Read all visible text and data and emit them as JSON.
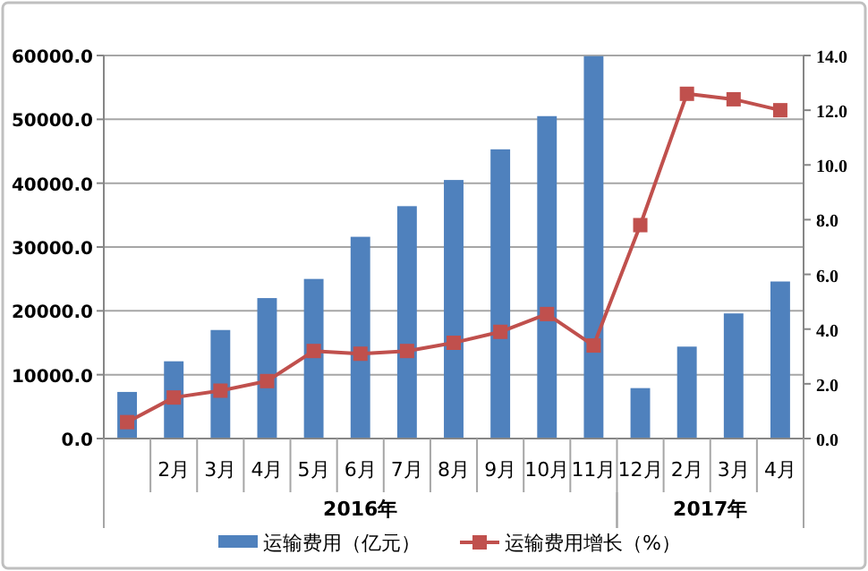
{
  "chart_data": {
    "type": "bar",
    "categories": [
      null,
      "2月",
      "3月",
      "4月",
      "5月",
      "6月",
      "7月",
      "8月",
      "9月",
      "10月",
      "11月",
      "12月",
      "2月",
      "3月",
      "4月"
    ],
    "series": [
      {
        "name": "运输费用（亿元）",
        "color": "#4f81bd",
        "values": [
          7300,
          12100,
          17000,
          22000,
          25000,
          31600,
          36400,
          40500,
          45300,
          50500,
          59900,
          7900,
          14400,
          19600,
          24600
        ]
      },
      {
        "name": "运输费用增长（%）",
        "type": "line",
        "axis": "y2",
        "color": "#c0504d",
        "marker": "square",
        "values": [
          0.6,
          1.5,
          1.75,
          2.1,
          3.2,
          3.1,
          3.2,
          3.5,
          3.9,
          4.55,
          3.4,
          7.8,
          12.6,
          12.4,
          12.0
        ]
      }
    ],
    "ylim": [
      0,
      60000
    ],
    "yticks": [
      {
        "value": 0,
        "label": "0.0"
      },
      {
        "value": 10000,
        "label": "10000.0"
      },
      {
        "value": 20000,
        "label": "20000.0"
      },
      {
        "value": 30000,
        "label": "30000.0"
      },
      {
        "value": 40000,
        "label": "40000.0"
      },
      {
        "value": 50000,
        "label": "50000.0"
      },
      {
        "value": 60000,
        "label": "60000.0"
      }
    ],
    "y2lim": [
      0,
      14
    ],
    "y2ticks": [
      {
        "value": 0,
        "label": "0.0"
      },
      {
        "value": 2,
        "label": "2.0"
      },
      {
        "value": 4,
        "label": "4.0"
      },
      {
        "value": 6,
        "label": "6.0"
      },
      {
        "value": 8,
        "label": "8.0"
      },
      {
        "value": 10,
        "label": "10.0"
      },
      {
        "value": 12,
        "label": "12.0"
      },
      {
        "value": 14,
        "label": "14.0"
      }
    ],
    "annotations": [
      "2016年",
      "2017年"
    ],
    "grid": "y",
    "legend": "bottom"
  }
}
